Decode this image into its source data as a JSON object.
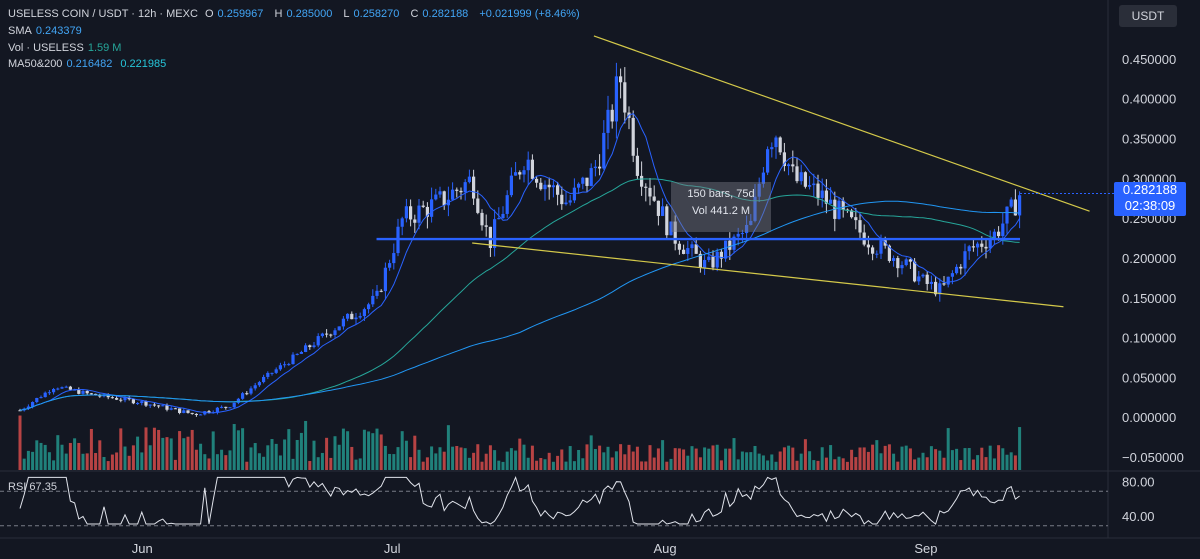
{
  "header": {
    "symbol": "USELESS COIN / USDT · 12h · MEXC",
    "open_label": "O",
    "open": "0.259967",
    "high_label": "H",
    "high": "0.285000",
    "low_label": "L",
    "low": "0.258270",
    "close_label": "C",
    "close": "0.282188",
    "change": "+0.021999 (+8.46%)",
    "sma_label": "SMA",
    "sma_value": "0.243379",
    "vol_label": "Vol · USELESS",
    "vol_value": "1.59 M",
    "ma_label": "MA50&200",
    "ma50_value": "0.216482",
    "ma200_value": "0.221985"
  },
  "currency_button": "USDT",
  "price_badge": {
    "price": "0.282188",
    "countdown": "02:38:09"
  },
  "measure_tool": {
    "bars": "150 bars, 75d",
    "vol": "Vol 441.2 M"
  },
  "rsi": {
    "label": "RSI",
    "value": "67.35",
    "ticks": [
      "80.00",
      "40.00"
    ],
    "upper": 70,
    "lower": 30
  },
  "colors": {
    "up": "#2962ff",
    "down": "#d1d4dc",
    "vol_up": "#26a69a",
    "vol_down": "#ef5350",
    "trend": "#d4c94a",
    "sma": "#2962ff",
    "ma50": "#26a69a",
    "ma200": "#2196f3",
    "rsi_line": "#e0e3eb"
  },
  "chart_data": {
    "type": "line",
    "title": "USELESS COIN / USDT · 12h · MEXC",
    "x_ticks": [
      "Jun",
      "Jul",
      "Aug",
      "Sep"
    ],
    "y_ticks": [
      "0.450000",
      "0.400000",
      "0.350000",
      "0.300000",
      "0.250000",
      "0.200000",
      "0.150000",
      "0.100000",
      "0.050000",
      "0.000000",
      "−0.050000"
    ],
    "ylim": [
      -0.065,
      0.5
    ],
    "price_path": [
      [
        "May 21",
        0.01
      ],
      [
        "May 25",
        0.04
      ],
      [
        "May 29",
        0.03
      ],
      [
        "Jun 4",
        0.02
      ],
      [
        "Jun 10",
        0.005
      ],
      [
        "Jun 14",
        0.015
      ],
      [
        "Jun 18",
        0.05
      ],
      [
        "Jun 22",
        0.08
      ],
      [
        "Jun 27",
        0.12
      ],
      [
        "Jul 1",
        0.15
      ],
      [
        "Jul 4",
        0.25
      ],
      [
        "Jul 8",
        0.27
      ],
      [
        "Jul 12",
        0.3
      ],
      [
        "Jul 14",
        0.22
      ],
      [
        "Jul 18",
        0.33
      ],
      [
        "Jul 20",
        0.3
      ],
      [
        "Jul 23",
        0.27
      ],
      [
        "Jul 26",
        0.31
      ],
      [
        "Jul 28",
        0.38
      ],
      [
        "Jul 29",
        0.43
      ],
      [
        "Jul 31",
        0.32
      ],
      [
        "Aug 4",
        0.23
      ],
      [
        "Aug 8",
        0.19
      ],
      [
        "Aug 13",
        0.24
      ],
      [
        "Aug 15",
        0.35
      ],
      [
        "Aug 16",
        0.36
      ],
      [
        "Aug 18",
        0.3
      ],
      [
        "Aug 21",
        0.28
      ],
      [
        "Aug 24",
        0.25
      ],
      [
        "Aug 27",
        0.22
      ],
      [
        "Aug 30",
        0.2
      ],
      [
        "Sep 2",
        0.17
      ],
      [
        "Sep 4",
        0.16
      ],
      [
        "Sep 7",
        0.21
      ],
      [
        "Sep 10",
        0.23
      ],
      [
        "Sep 12",
        0.26
      ],
      [
        "Sep 13",
        0.282
      ]
    ],
    "trendlines": {
      "upper": [
        [
          "Jul 26",
          0.48
        ],
        [
          "Sep 21",
          0.26
        ]
      ],
      "lower": [
        [
          "Jul 12",
          0.22
        ],
        [
          "Sep 18",
          0.14
        ]
      ],
      "horizontal": [
        [
          "Jul 1",
          0.225
        ],
        [
          "Sep 13",
          0.225
        ]
      ]
    },
    "rsi_ticks": [
      80,
      40
    ]
  }
}
